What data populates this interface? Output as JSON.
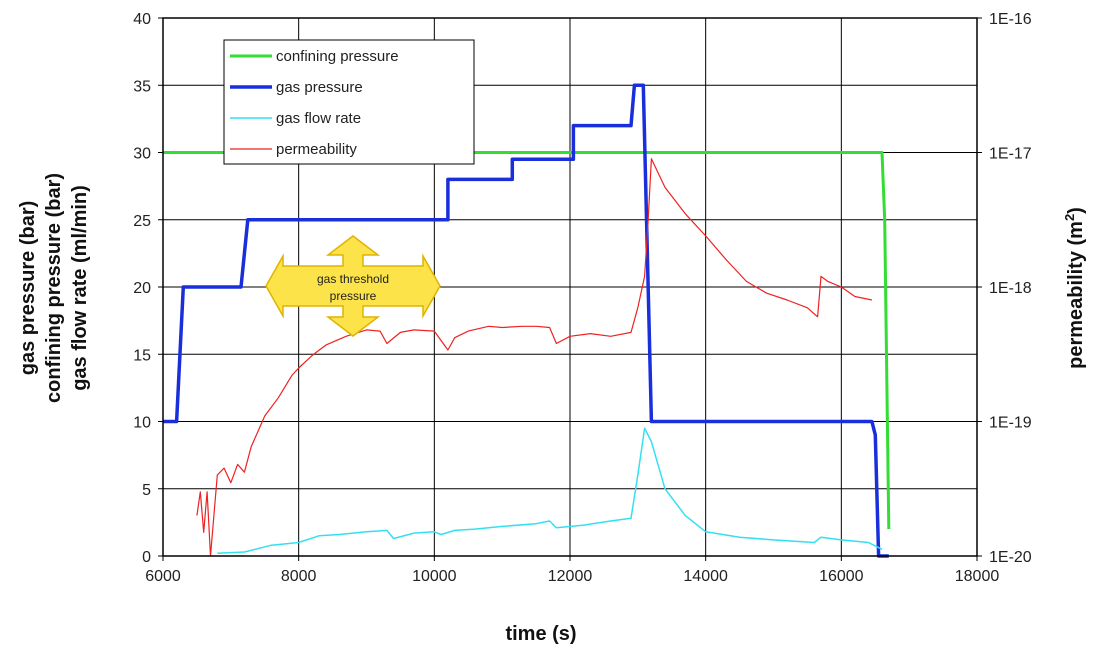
{
  "chart_data": {
    "type": "line",
    "xlabel": "time (s)",
    "ylabel_lines": [
      "gas pressure (bar)",
      "confining pressure (bar)",
      "gas flow rate (ml/min)"
    ],
    "y2label": "permeability (m",
    "y2label_sup": "2",
    "y2label_close": ")",
    "xlim": [
      6000,
      18000
    ],
    "ylim": [
      0,
      40
    ],
    "y2lim": [
      1e-20,
      1e-16
    ],
    "y2scale": "log",
    "grid": true,
    "legend_position": "top-left",
    "x_ticks": [
      "6000",
      "8000",
      "10000",
      "12000",
      "14000",
      "16000",
      "18000"
    ],
    "y_ticks": [
      "0",
      "5",
      "10",
      "15",
      "20",
      "25",
      "30",
      "35",
      "40"
    ],
    "y2_ticks": [
      "1E-20",
      "1E-19",
      "1E-18",
      "1E-17",
      "1E-16"
    ],
    "annotation": {
      "lines": [
        "gas threshold",
        "pressure"
      ]
    },
    "series": [
      {
        "name": "confining pressure",
        "axis": "left",
        "color": "#33dd33",
        "width": 3,
        "x": [
          6000,
          16600,
          16640,
          16700
        ],
        "y": [
          30,
          30,
          25,
          2
        ]
      },
      {
        "name": "gas pressure",
        "axis": "left",
        "color": "#1a2fdc",
        "width": 3.5,
        "x": [
          6000,
          6200,
          6300,
          6300,
          7150,
          7250,
          7250,
          10200,
          10200,
          11150,
          11150,
          12050,
          12050,
          12900,
          12950,
          13080,
          13200,
          16450,
          16500,
          16550,
          16700
        ],
        "y": [
          10,
          10,
          20,
          20,
          20,
          25,
          25,
          25,
          28,
          28,
          29.5,
          29.5,
          32,
          32,
          35,
          35,
          10,
          10,
          9,
          0,
          0
        ]
      },
      {
        "name": "gas flow rate",
        "axis": "left",
        "color": "#33e0f0",
        "width": 1.5,
        "x": [
          6800,
          7200,
          7600,
          8000,
          8300,
          8600,
          9000,
          9300,
          9400,
          9700,
          10000,
          10100,
          10300,
          10600,
          11000,
          11500,
          11700,
          11800,
          12200,
          12600,
          12900,
          13000,
          13100,
          13200,
          13400,
          13700,
          14000,
          14500,
          15000,
          15600,
          15700,
          16000,
          16400,
          16600
        ],
        "y": [
          0.2,
          0.3,
          0.8,
          1,
          1.5,
          1.6,
          1.8,
          1.9,
          1.3,
          1.7,
          1.8,
          1.6,
          1.9,
          2.0,
          2.2,
          2.4,
          2.6,
          2.1,
          2.3,
          2.6,
          2.8,
          6,
          9.5,
          8.5,
          5,
          3,
          1.8,
          1.4,
          1.2,
          1.0,
          1.4,
          1.2,
          1.0,
          0.5
        ]
      },
      {
        "name": "permeability",
        "axis": "right",
        "color": "#ee2222",
        "width": 1.2,
        "x": [
          6500,
          6550,
          6600,
          6650,
          6700,
          6750,
          6800,
          6900,
          7000,
          7100,
          7200,
          7300,
          7500,
          7700,
          7900,
          8000,
          8200,
          8400,
          8700,
          9000,
          9200,
          9300,
          9500,
          9700,
          10000,
          10200,
          10300,
          10500,
          10800,
          11000,
          11300,
          11500,
          11700,
          11800,
          12000,
          12300,
          12600,
          12900,
          13000,
          13100,
          13150,
          13200,
          13400,
          13700,
          14000,
          14300,
          14600,
          14900,
          15200,
          15500,
          15650,
          15700,
          15800,
          16000,
          16200,
          16450
        ],
        "y": [
          2e-20,
          3e-20,
          1.5e-20,
          3e-20,
          1e-20,
          2e-20,
          4e-20,
          4.5e-20,
          3.5e-20,
          4.8e-20,
          4.2e-20,
          6.5e-20,
          1.1e-19,
          1.5e-19,
          2.2e-19,
          2.5e-19,
          3.1e-19,
          3.7e-19,
          4.3e-19,
          4.8e-19,
          4.7e-19,
          3.8e-19,
          4.6e-19,
          4.8e-19,
          4.7e-19,
          3.4e-19,
          4.2e-19,
          4.7e-19,
          5.1e-19,
          5e-19,
          5.1e-19,
          5.1e-19,
          5e-19,
          3.8e-19,
          4.3e-19,
          4.5e-19,
          4.3e-19,
          4.6e-19,
          7e-19,
          1.2e-18,
          3e-18,
          9e-18,
          5.5e-18,
          3.5e-18,
          2.4e-18,
          1.6e-18,
          1.1e-18,
          9e-19,
          8e-19,
          7e-19,
          6e-19,
          1.2e-18,
          1.1e-18,
          1e-18,
          8.5e-19,
          8e-19
        ]
      }
    ]
  }
}
